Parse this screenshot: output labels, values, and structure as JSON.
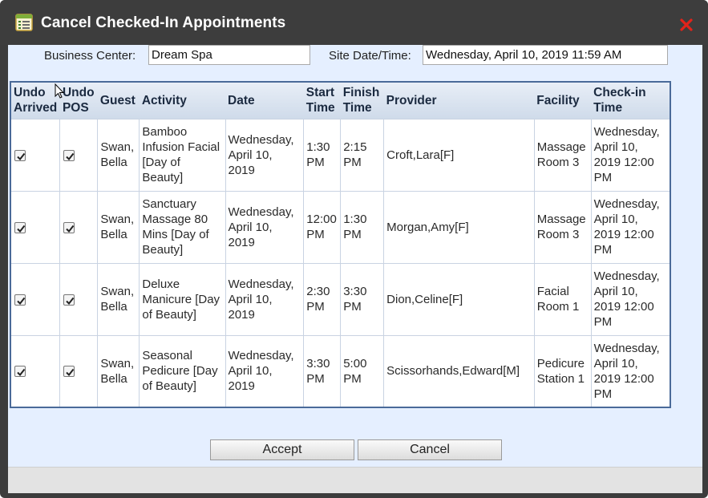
{
  "window": {
    "title": "Cancel Checked-In Appointments",
    "title_icon": "form-list-icon",
    "close_icon": "close-x-icon",
    "accent_close": "#e2231a"
  },
  "fields": {
    "business_center_label": "Business Center:",
    "business_center_value": "Dream Spa",
    "site_datetime_label": "Site Date/Time:",
    "site_datetime_value": "Wednesday, April 10, 2019 11:59 AM"
  },
  "table": {
    "headers": {
      "undo_arrived": [
        "Undo",
        "Arrived"
      ],
      "undo_pos": [
        "Undo",
        "POS"
      ],
      "guest": "Guest",
      "activity": "Activity",
      "date": "Date",
      "start_time": [
        "Start",
        "Time"
      ],
      "finish_time": [
        "Finish",
        "Time"
      ],
      "provider": "Provider",
      "facility": "Facility",
      "checkin_time": [
        "Check-in",
        "Time"
      ]
    },
    "rows": [
      {
        "undo_arrived": true,
        "undo_pos": true,
        "guest": "Swan, Bella",
        "activity": "Bamboo Infusion Facial [Day of Beauty]",
        "date": "Wednesday, April 10, 2019",
        "start": "1:30 PM",
        "finish": "2:15 PM",
        "provider": "Croft,Lara[F]",
        "facility": "Massage Room 3",
        "checkin": "Wednesday, April 10, 2019 12:00 PM"
      },
      {
        "undo_arrived": true,
        "undo_pos": true,
        "guest": "Swan, Bella",
        "activity": "Sanctuary Massage 80 Mins [Day of Beauty]",
        "date": "Wednesday, April 10, 2019",
        "start": "12:00 PM",
        "finish": "1:30 PM",
        "provider": "Morgan,Amy[F]",
        "facility": "Massage Room 3",
        "checkin": "Wednesday, April 10, 2019 12:00 PM"
      },
      {
        "undo_arrived": true,
        "undo_pos": true,
        "guest": "Swan, Bella",
        "activity": "Deluxe Manicure [Day of Beauty]",
        "date": "Wednesday, April 10, 2019",
        "start": "2:30 PM",
        "finish": "3:30 PM",
        "provider": "Dion,Celine[F]",
        "facility": "Facial Room 1",
        "checkin": "Wednesday, April 10, 2019 12:00 PM"
      },
      {
        "undo_arrived": true,
        "undo_pos": true,
        "guest": "Swan, Bella",
        "activity": "Seasonal Pedicure [Day of Beauty]",
        "date": "Wednesday, April 10, 2019",
        "start": "3:30 PM",
        "finish": "5:00 PM",
        "provider": "Scissorhands,Edward[M]",
        "facility": "Pedicure Station 1",
        "checkin": "Wednesday, April 10, 2019 12:00 PM"
      }
    ]
  },
  "buttons": {
    "accept": "Accept",
    "cancel": "Cancel"
  }
}
